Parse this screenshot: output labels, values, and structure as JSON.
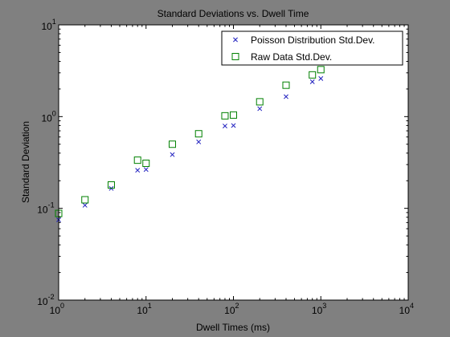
{
  "window": {
    "background": "#808080",
    "axes_background": "#ffffff"
  },
  "chart_data": {
    "type": "scatter",
    "title": "Standard Deviations vs. Dwell Time",
    "xlabel": "Dwell Times (ms)",
    "ylabel": "Standard Deviation",
    "xscale": "log",
    "yscale": "log",
    "xlim": [
      1,
      10000
    ],
    "ylim": [
      0.01,
      10
    ],
    "x_ticks": [
      {
        "value": 1,
        "base": "10",
        "exp": "0"
      },
      {
        "value": 10,
        "base": "10",
        "exp": "1"
      },
      {
        "value": 100,
        "base": "10",
        "exp": "2"
      },
      {
        "value": 1000,
        "base": "10",
        "exp": "3"
      },
      {
        "value": 10000,
        "base": "10",
        "exp": "4"
      }
    ],
    "y_ticks": [
      {
        "value": 0.01,
        "base": "10",
        "exp": "-2"
      },
      {
        "value": 0.1,
        "base": "10",
        "exp": "-1"
      },
      {
        "value": 1,
        "base": "10",
        "exp": "0"
      },
      {
        "value": 10,
        "base": "10",
        "exp": "1"
      }
    ],
    "grid": false,
    "legend_position": "top-right",
    "series": [
      {
        "name": "Poisson Distribution Std.Dev.",
        "marker": "x",
        "color": "#1f1fbf",
        "points": [
          [
            1,
            0.075
          ],
          [
            2,
            0.108
          ],
          [
            4,
            0.165
          ],
          [
            8,
            0.26
          ],
          [
            10,
            0.265
          ],
          [
            20,
            0.385
          ],
          [
            40,
            0.53
          ],
          [
            80,
            0.79
          ],
          [
            100,
            0.8
          ],
          [
            200,
            1.22
          ],
          [
            400,
            1.65
          ],
          [
            800,
            2.4
          ],
          [
            1000,
            2.6
          ]
        ]
      },
      {
        "name": "Raw Data Std.Dev.",
        "marker": "square",
        "color": "#008000",
        "points": [
          [
            1,
            0.088
          ],
          [
            2,
            0.124
          ],
          [
            4,
            0.18
          ],
          [
            8,
            0.335
          ],
          [
            10,
            0.31
          ],
          [
            20,
            0.5
          ],
          [
            40,
            0.65
          ],
          [
            80,
            1.02
          ],
          [
            100,
            1.04
          ],
          [
            200,
            1.45
          ],
          [
            400,
            2.2
          ],
          [
            800,
            2.85
          ],
          [
            1000,
            3.25
          ]
        ]
      }
    ]
  }
}
